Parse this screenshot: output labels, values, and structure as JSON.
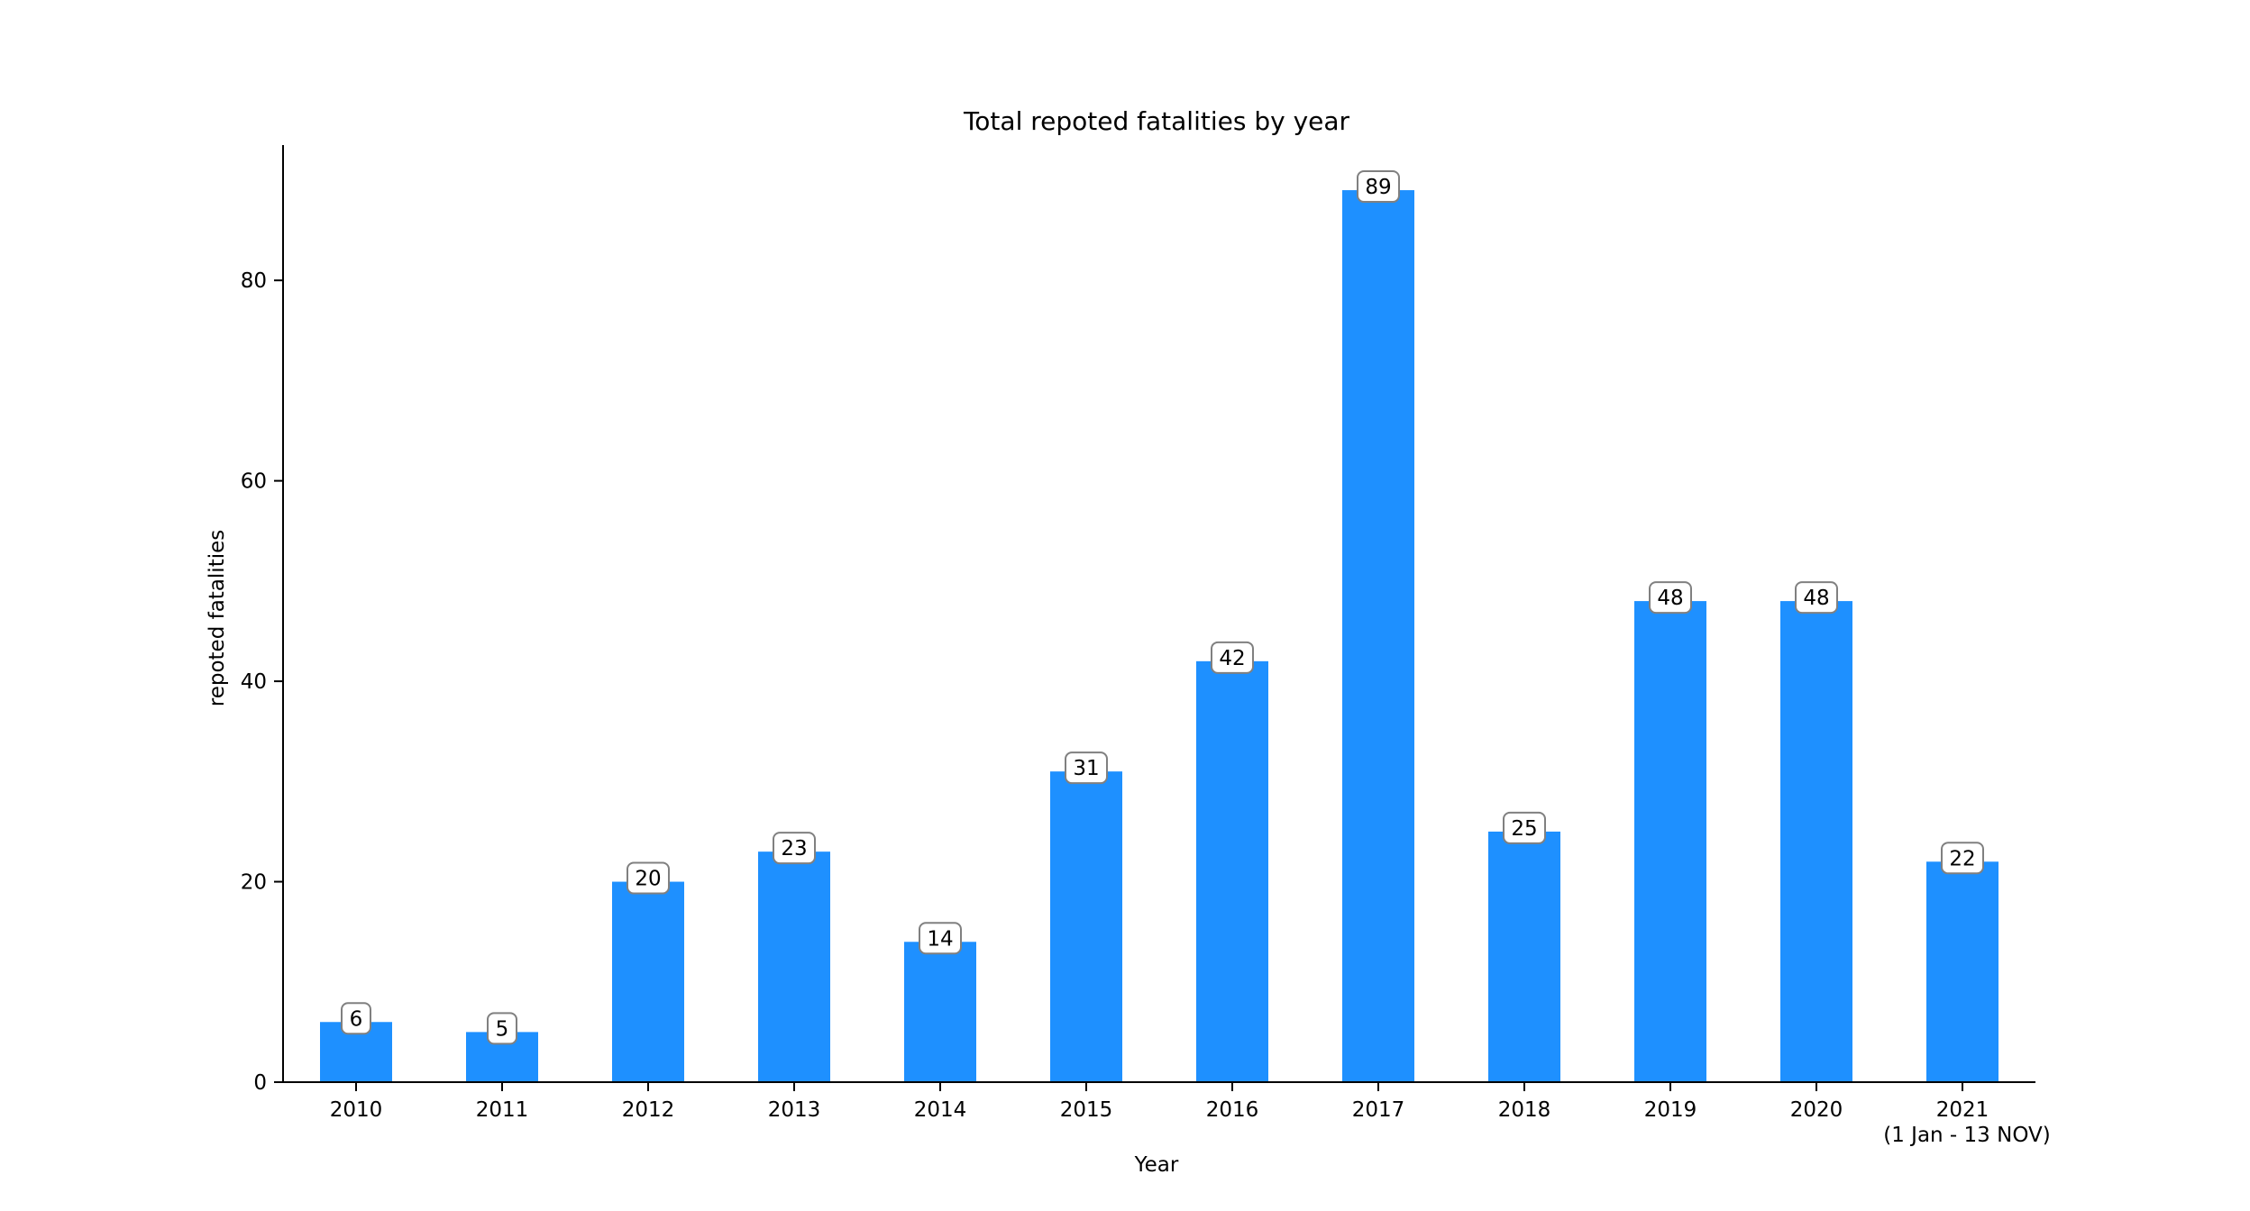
{
  "chart_data": {
    "type": "bar",
    "title": "Total repoted fatalities by year",
    "xlabel": "Year",
    "ylabel": "repoted fatalities",
    "categories": [
      "2010",
      "2011",
      "2012",
      "2013",
      "2014",
      "2015",
      "2016",
      "2017",
      "2018",
      "2019",
      "2020",
      "2021"
    ],
    "category_sublabels": [
      "",
      "",
      "",
      "",
      "",
      "",
      "",
      "",
      "",
      "",
      "",
      "(1 Jan - 13  NOV)"
    ],
    "values": [
      6,
      5,
      20,
      23,
      14,
      31,
      42,
      89,
      25,
      48,
      48,
      22
    ],
    "ylim": [
      0,
      93.5
    ],
    "yticks": [
      0,
      20,
      40,
      60,
      80
    ],
    "grid": false,
    "legend": "none",
    "bar_color": "#1e90ff",
    "data_labels": true
  }
}
